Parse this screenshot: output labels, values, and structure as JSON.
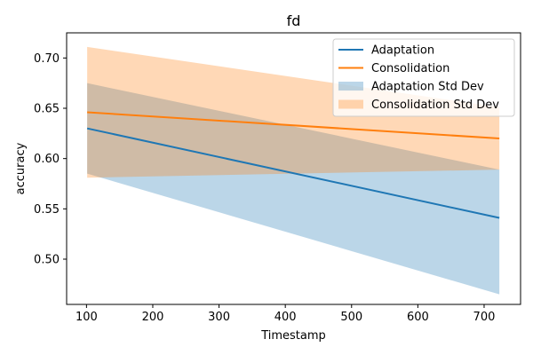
{
  "chart_data": {
    "type": "line",
    "title": "fd",
    "xlabel": "Timestamp",
    "ylabel": "accuracy",
    "xlim": [
      70,
      755
    ],
    "ylim": [
      0.455,
      0.725
    ],
    "xticks": [
      100,
      200,
      300,
      400,
      500,
      600,
      700
    ],
    "yticks": [
      0.5,
      0.55,
      0.6,
      0.65,
      0.7
    ],
    "ytick_labels": [
      "0.50",
      "0.55",
      "0.60",
      "0.65",
      "0.70"
    ],
    "grid": false,
    "legend_position": "upper right",
    "x": [
      101,
      723
    ],
    "series": [
      {
        "name": "Adaptation",
        "values": [
          0.63,
          0.541
        ],
        "band_lower": [
          0.585,
          0.465
        ],
        "band_upper": [
          0.675,
          0.589
        ],
        "band_name": "Adaptation Std Dev",
        "color": "#1f77b4",
        "band_color": "#1f77b4",
        "band_opacity": 0.3
      },
      {
        "name": "Consolidation",
        "values": [
          0.646,
          0.62
        ],
        "band_lower": [
          0.581,
          0.589
        ],
        "band_upper": [
          0.711,
          0.651
        ],
        "band_name": "Consolidation Std Dev",
        "color": "#ff7f0e",
        "band_color": "#ff7f0e",
        "band_opacity": 0.3
      }
    ]
  }
}
